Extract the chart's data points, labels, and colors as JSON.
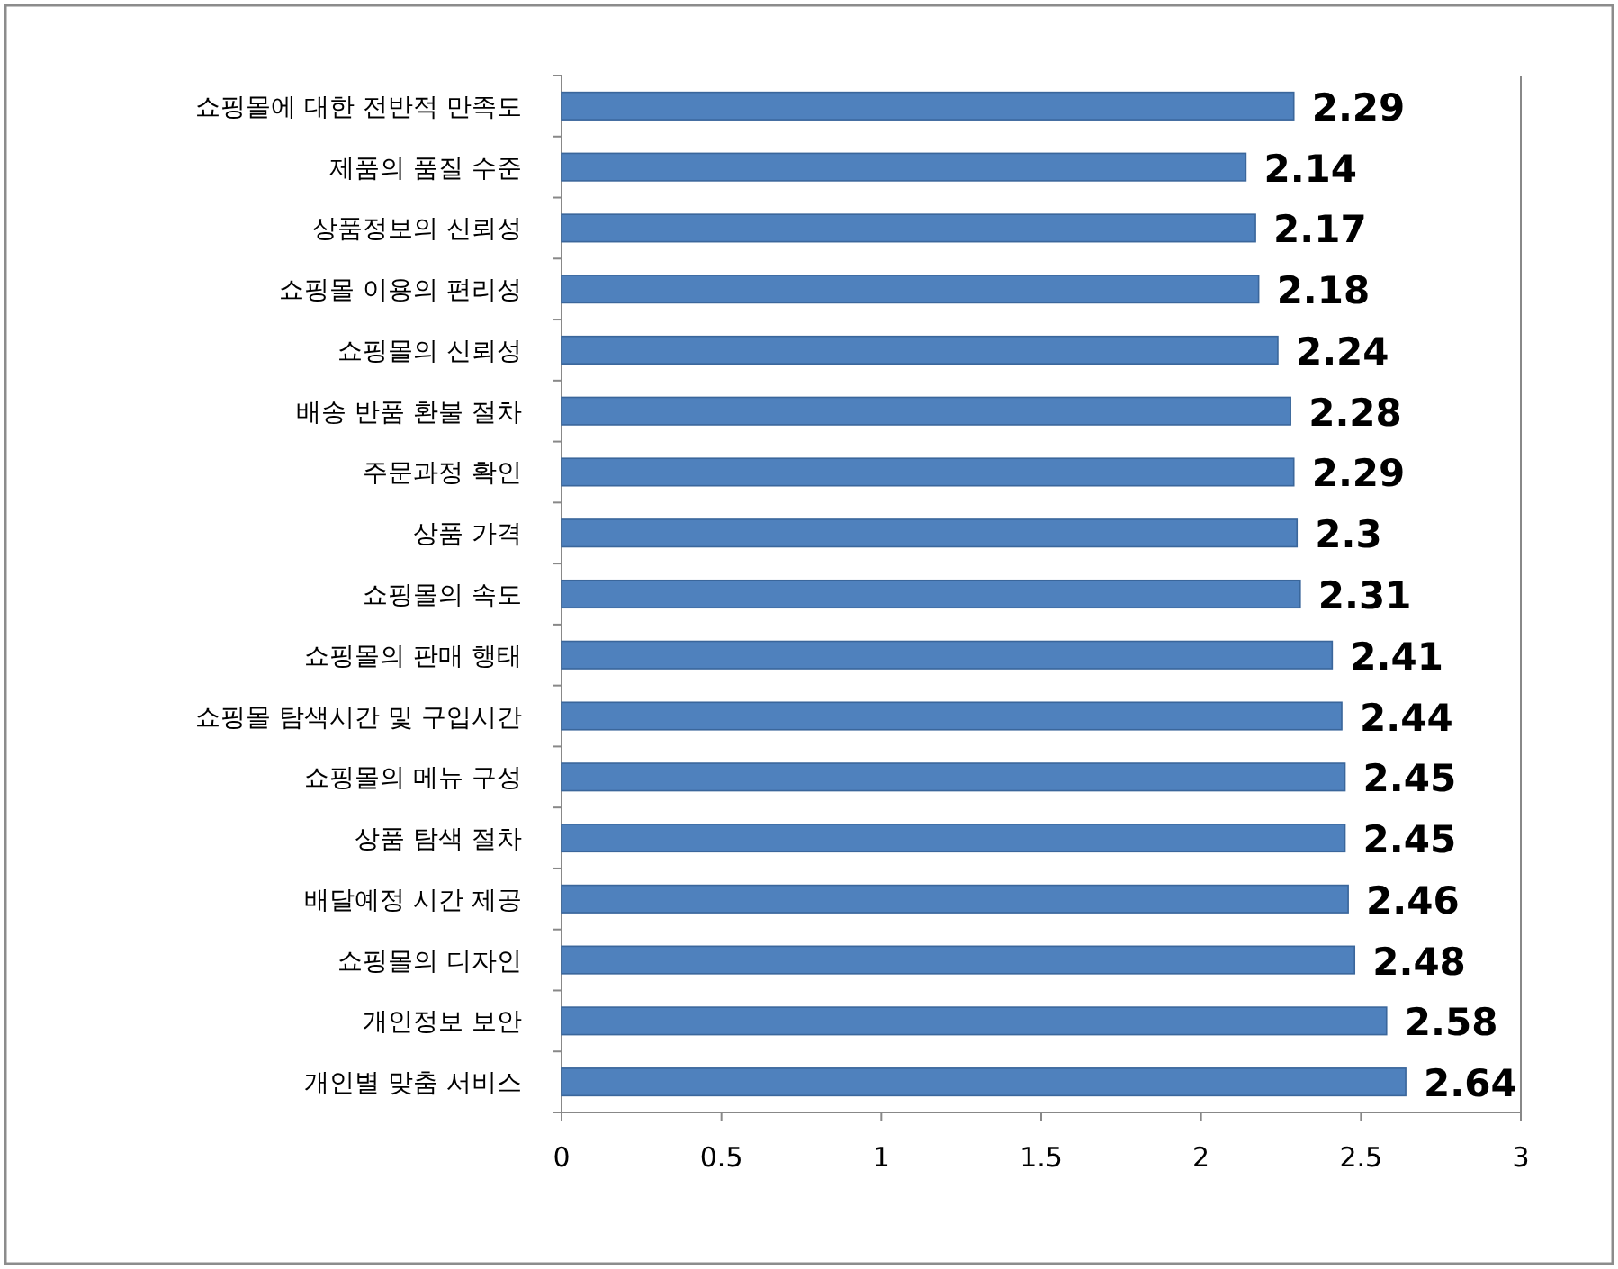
{
  "chart_data": {
    "type": "bar",
    "orientation": "horizontal",
    "categories": [
      "쇼핑몰에 대한 전반적 만족도",
      "제품의 품질 수준",
      "상품정보의 신뢰성",
      "쇼핑몰 이용의 편리성",
      "쇼핑몰의 신뢰성",
      "배송 반품 환불 절차",
      "주문과정 확인",
      "상품 가격",
      "쇼핑몰의 속도",
      "쇼핑몰의 판매 행태",
      "쇼핑몰 탐색시간 및 구입시간",
      "쇼핑몰의 메뉴 구성",
      "상품 탐색 절차",
      "배달예정 시간 제공",
      "쇼핑몰의 디자인",
      "개인정보 보안",
      "개인별 맞춤 서비스"
    ],
    "values": [
      2.29,
      2.14,
      2.17,
      2.18,
      2.24,
      2.28,
      2.29,
      2.3,
      2.31,
      2.41,
      2.44,
      2.45,
      2.45,
      2.46,
      2.48,
      2.58,
      2.64
    ],
    "color": "#4f81bd",
    "xlim": [
      0,
      3
    ],
    "xticks": [
      0,
      0.5,
      1,
      1.5,
      2,
      2.5,
      3
    ],
    "data_labels": true
  }
}
